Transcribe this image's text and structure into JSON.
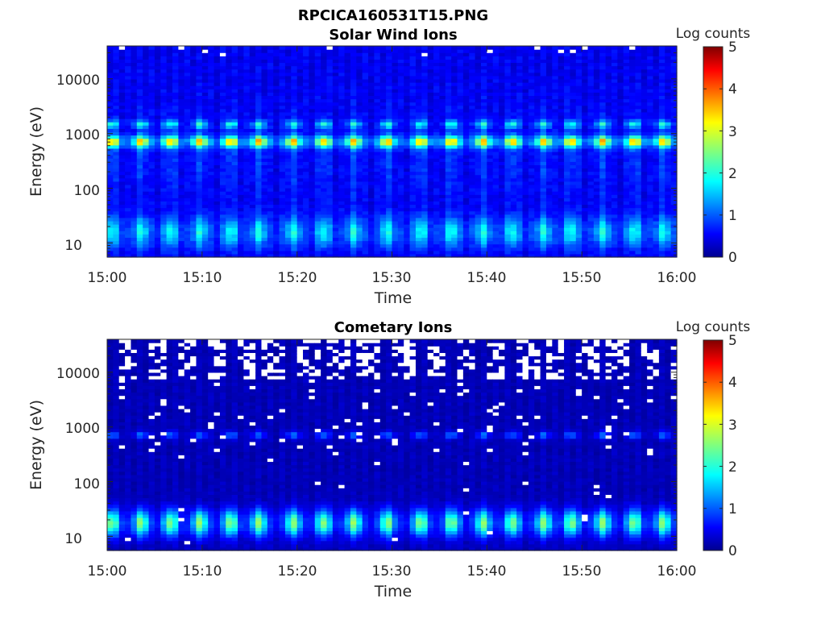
{
  "figure_title": "RPCICA160531T15.PNG",
  "chart_data": [
    {
      "type": "heatmap",
      "title": "Solar Wind Ions",
      "xlabel": "Time",
      "ylabel": "Energy (eV)",
      "xlim": [
        "15:00",
        "16:00"
      ],
      "x_ticks": [
        "15:00",
        "15:10",
        "15:20",
        "15:30",
        "15:40",
        "15:50",
        "16:00"
      ],
      "ylim": [
        5.5,
        40000
      ],
      "y_scale": "log",
      "y_ticks": [
        "10",
        "100",
        "1000",
        "10000"
      ],
      "colorbar_label": "Log counts",
      "colorbar_range": [
        0,
        5
      ],
      "colorbar_ticks": [
        "0",
        "1",
        "2",
        "3",
        "4",
        "5"
      ],
      "colormap": "jet",
      "time_bins": 96,
      "energy_bins": 64,
      "sweep_bursts_minutes": [
        0.5,
        3.6,
        6.7,
        9.8,
        13.0,
        16.0,
        19.6,
        22.8,
        26.0,
        29.5,
        33.0,
        36.3,
        39.6,
        42.7,
        46.0,
        48.9,
        52.2,
        55.5,
        58.6
      ],
      "bands": [
        {
          "name": "solar wind peak",
          "energy_ev": 720,
          "log_counts": 2.6
        },
        {
          "name": "alpha peak",
          "energy_ev": 1500,
          "log_counts": 1.8
        },
        {
          "name": "low energy band",
          "energy_ev": 15,
          "log_counts": 1.7
        }
      ]
    },
    {
      "type": "heatmap",
      "title": "Cometary Ions",
      "xlabel": "Time",
      "ylabel": "Energy (eV)",
      "xlim": [
        "15:00",
        "16:00"
      ],
      "x_ticks": [
        "15:00",
        "15:10",
        "15:20",
        "15:30",
        "15:40",
        "15:50",
        "16:00"
      ],
      "ylim": [
        5.5,
        40000
      ],
      "y_scale": "log",
      "y_ticks": [
        "10",
        "100",
        "1000",
        "10000"
      ],
      "colorbar_label": "Log counts",
      "colorbar_range": [
        0,
        5
      ],
      "colorbar_ticks": [
        "0",
        "1",
        "2",
        "3",
        "4",
        "5"
      ],
      "colormap": "jet",
      "time_bins": 96,
      "energy_bins": 64,
      "sweep_bursts_minutes": [
        0.5,
        3.6,
        6.7,
        9.8,
        13.0,
        16.0,
        19.6,
        22.8,
        26.0,
        29.5,
        33.0,
        36.3,
        39.6,
        42.7,
        46.0,
        48.9,
        52.2,
        55.5,
        58.6
      ],
      "bands": [
        {
          "name": "solar wind leak",
          "energy_ev": 720,
          "log_counts": 1.3
        },
        {
          "name": "low energy band",
          "energy_ev": 15,
          "log_counts": 2.4
        }
      ]
    }
  ]
}
